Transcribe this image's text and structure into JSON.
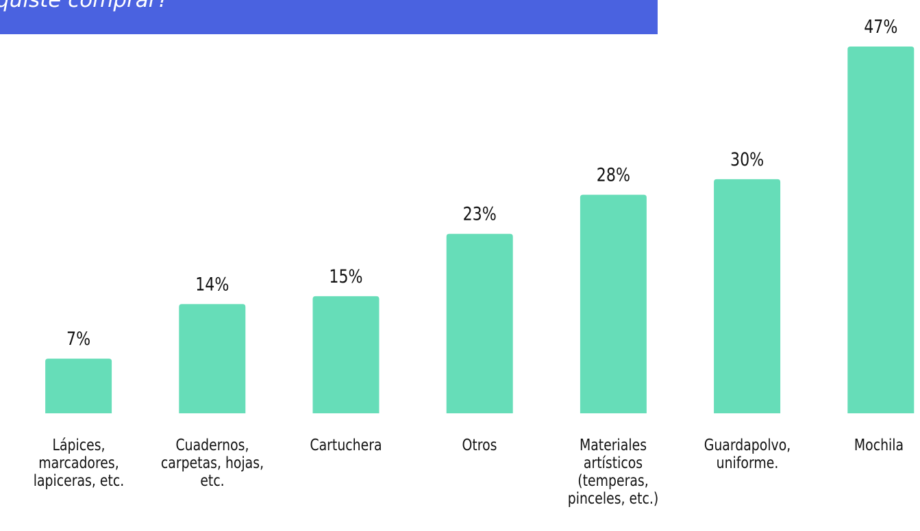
{
  "chart_data": {
    "type": "bar",
    "title": "quiste comprar?",
    "categories": [
      "Lápices,\nmarcadores,\nlapiceras, etc.",
      "Cuadernos,\ncarpetas, hojas,\netc.",
      "Cartuchera",
      "Otros",
      "Materiales\nartísticos\n(temperas,\npinceles, etc.)",
      "Guardapolvo,\nuniforme.",
      "Mochila"
    ],
    "values": [
      7,
      14,
      15,
      23,
      28,
      30,
      47
    ],
    "value_labels": [
      "7%",
      "14%",
      "15%",
      "23%",
      "28%",
      "30%",
      "47%"
    ],
    "color": "#66ddb8",
    "banner_color": "#4a62e0",
    "ylim": [
      0,
      47
    ]
  }
}
